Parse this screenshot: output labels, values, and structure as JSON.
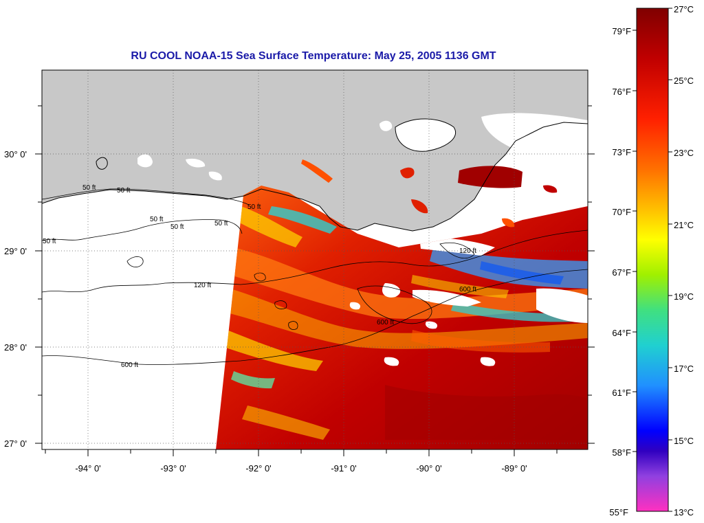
{
  "title": "RU COOL  NOAA-15  Sea Surface Temperature:  May 25, 2005 1136 GMT",
  "colors": {
    "land": "#c8c8c8",
    "no_data": "#ffffff",
    "title": "#1a1aa8",
    "sst_warm": "#c00000",
    "sst_mid": "#ffd800",
    "sst_cool": "#30d0d0"
  },
  "lat_labels": [
    "30° 0'",
    "29° 0'",
    "28° 0'",
    "27° 0'"
  ],
  "lon_labels": [
    "-94° 0'",
    "-93° 0'",
    "-92° 0'",
    "-91° 0'",
    "-90° 0'",
    "-89° 0'"
  ],
  "contour_labels": [
    "50 ft",
    "50 ft",
    "50 ft",
    "50 ft",
    "50 ft",
    "50 ft",
    "120 ft",
    "120 ft",
    "600 ft",
    "600 ft",
    "600 ft",
    "50 ft"
  ],
  "colorbar": {
    "fahrenheit": [
      "79°F",
      "76°F",
      "73°F",
      "70°F",
      "67°F",
      "64°F",
      "61°F",
      "58°F",
      "55°F"
    ],
    "celsius": [
      "27°C",
      "25°C",
      "23°C",
      "21°C",
      "19°C",
      "17°C",
      "15°C",
      "13°C"
    ]
  },
  "chart_data": {
    "type": "heatmap",
    "title": "RU COOL  NOAA-15  Sea Surface Temperature:  May 25, 2005 1136 GMT",
    "xlabel": "",
    "ylabel": "",
    "x_ticks": [
      -94,
      -93,
      -92,
      -91,
      -90,
      -89
    ],
    "y_ticks": [
      30,
      29,
      28,
      27
    ],
    "colorbar_range_c": [
      13,
      27
    ],
    "colorbar_range_f": [
      55,
      81
    ],
    "colorbar_ticks_c": [
      27,
      25,
      23,
      21,
      19,
      17,
      15,
      13
    ],
    "colorbar_ticks_f": [
      79,
      76,
      73,
      70,
      67,
      64,
      61,
      58,
      55
    ]
  }
}
